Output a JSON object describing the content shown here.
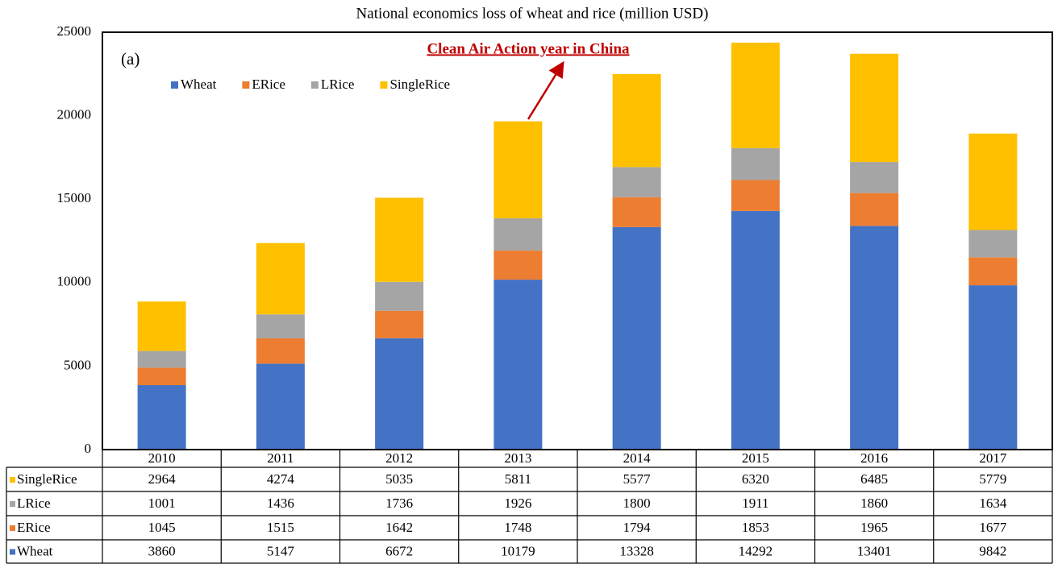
{
  "chart_data": {
    "type": "stacked_bar",
    "title": "National economics loss of wheat and rice (million USD)",
    "annotations": [
      "(a)",
      "Clean Air Action year in China"
    ],
    "categories": [
      "2010",
      "2011",
      "2012",
      "2013",
      "2014",
      "2015",
      "2016",
      "2017"
    ],
    "series": [
      {
        "name": "Wheat",
        "color": "#4472c4",
        "values": [
          3860,
          5147,
          6672,
          10179,
          13328,
          14292,
          13401,
          9842
        ]
      },
      {
        "name": "ERice",
        "color": "#ed7d31",
        "values": [
          1045,
          1515,
          1642,
          1748,
          1794,
          1853,
          1965,
          1677
        ]
      },
      {
        "name": "LRice",
        "color": "#a5a5a5",
        "values": [
          1001,
          1436,
          1736,
          1926,
          1800,
          1911,
          1860,
          1634
        ]
      },
      {
        "name": "SingleRice",
        "color": "#ffc000",
        "values": [
          2964,
          4274,
          5035,
          5811,
          5577,
          6320,
          6485,
          5779
        ]
      }
    ],
    "ylim": [
      0,
      25000
    ],
    "yticks": [
      0,
      5000,
      10000,
      15000,
      20000,
      25000
    ],
    "grid": false
  }
}
